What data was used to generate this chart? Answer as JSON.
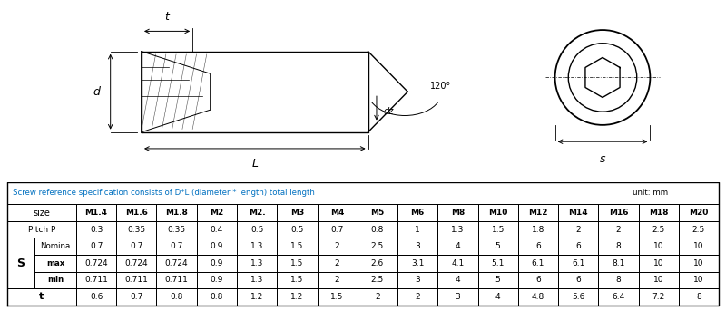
{
  "fig_width": 8.0,
  "fig_height": 3.43,
  "dpi": 100,
  "bg_color": "#ffffff",
  "table_header_text": "Screw reference specification consists of D*L (diameter * length) total length",
  "table_unit_text": "unit: mm",
  "header_color": "#0070C0",
  "table_border_color": "#000000",
  "col_headers": [
    "M1.4",
    "M1.6",
    "M1.8",
    "M2",
    "M2.",
    "M3",
    "M4",
    "M5",
    "M6",
    "M8",
    "M10",
    "M12",
    "M14",
    "M16",
    "M18",
    "M20"
  ],
  "data": [
    [
      "0.3",
      "0.35",
      "0.35",
      "0.4",
      "0.5",
      "0.5",
      "0.7",
      "0.8",
      "1",
      "1.3",
      "1.5",
      "1.8",
      "2",
      "2",
      "2.5",
      "2.5"
    ],
    [
      "0.7",
      "0.7",
      "0.7",
      "0.9",
      "1.3",
      "1.5",
      "2",
      "2.5",
      "3",
      "4",
      "5",
      "6",
      "6",
      "8",
      "10",
      "10"
    ],
    [
      "0.724",
      "0.724",
      "0.724",
      "0.9",
      "1.3",
      "1.5",
      "2",
      "2.6",
      "3.1",
      "4.1",
      "5.1",
      "6.1",
      "6.1",
      "8.1",
      "10",
      "10"
    ],
    [
      "0.711",
      "0.711",
      "0.711",
      "0.9",
      "1.3",
      "1.5",
      "2",
      "2.5",
      "3",
      "4",
      "5",
      "6",
      "6",
      "8",
      "10",
      "10"
    ],
    [
      "0.6",
      "0.7",
      "0.8",
      "0.8",
      "1.2",
      "1.2",
      "1.5",
      "2",
      "2",
      "3",
      "4",
      "4.8",
      "5.6",
      "6.4",
      "7.2",
      "8"
    ]
  ],
  "lc": "#000000",
  "lw": 1.0
}
